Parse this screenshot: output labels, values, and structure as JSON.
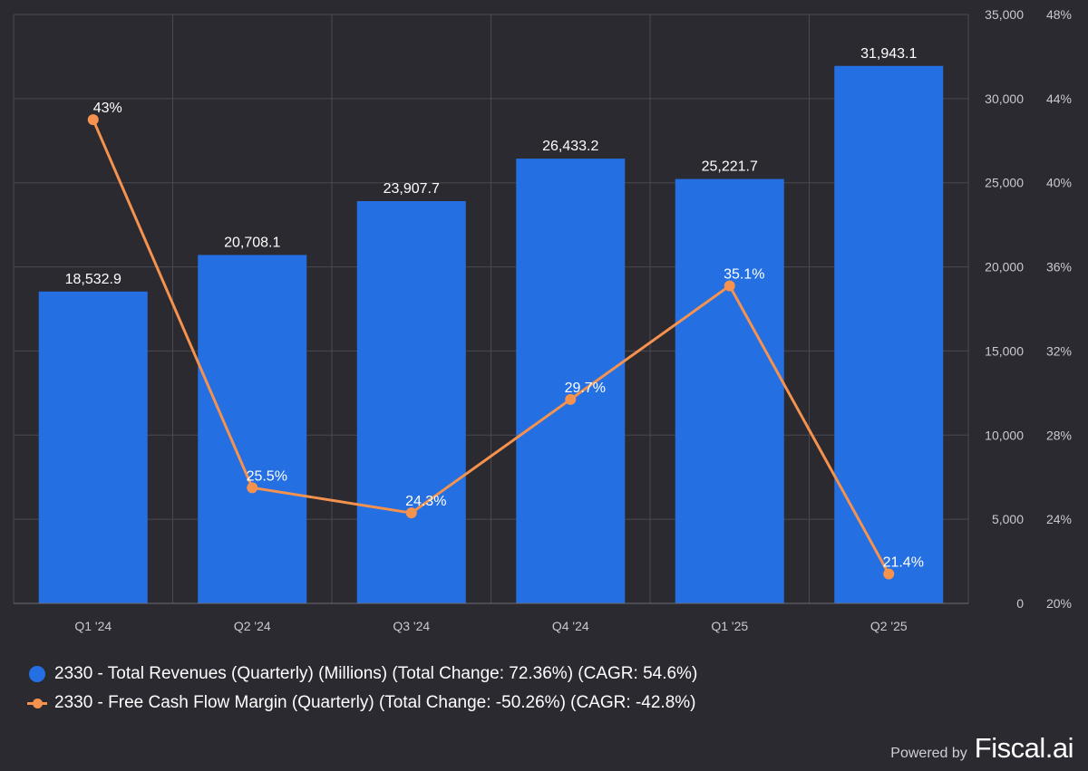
{
  "chart_data": {
    "type": "bar+line",
    "categories": [
      "Q1 '24",
      "Q2 '24",
      "Q3 '24",
      "Q4 '24",
      "Q1 '25",
      "Q2 '25"
    ],
    "series": [
      {
        "name": "2330 - Total Revenues (Quarterly) (Millions) (Total Change: 72.36%) (CAGR: 54.6%)",
        "type": "bar",
        "axis": "left",
        "values": [
          18532.9,
          20708.1,
          23907.7,
          26433.2,
          25221.7,
          31943.1
        ],
        "labels": [
          "18,532.9",
          "20,708.1",
          "23,907.7",
          "26,433.2",
          "25,221.7",
          "31,943.1"
        ],
        "color": "#2470e3"
      },
      {
        "name": "2330 - Free Cash Flow Margin (Quarterly) (Total Change: -50.26%) (CAGR: -42.8%)",
        "type": "line",
        "axis": "right",
        "values": [
          43,
          25.5,
          24.3,
          29.7,
          35.1,
          21.4
        ],
        "labels": [
          "43%",
          "25.5%",
          "24.3%",
          "29.7%",
          "35.1%",
          "21.4%"
        ],
        "color": "#f4924e"
      }
    ],
    "y_left": {
      "range": [
        0,
        35000
      ],
      "ticks": [
        0,
        5000,
        10000,
        15000,
        20000,
        25000,
        30000,
        35000
      ],
      "tick_labels": [
        "0",
        "5,000",
        "10,000",
        "15,000",
        "20,000",
        "25,000",
        "30,000",
        "35,000"
      ]
    },
    "y_right": {
      "range": [
        20,
        48
      ],
      "ticks": [
        20,
        24,
        28,
        32,
        36,
        40,
        44,
        48
      ],
      "tick_labels": [
        "20%",
        "24%",
        "28%",
        "32%",
        "36%",
        "40%",
        "44%",
        "48%"
      ]
    },
    "grid": true,
    "legend_position": "bottom-left"
  },
  "branding": {
    "powered_by": "Powered by",
    "brand": "Fiscal.ai"
  }
}
